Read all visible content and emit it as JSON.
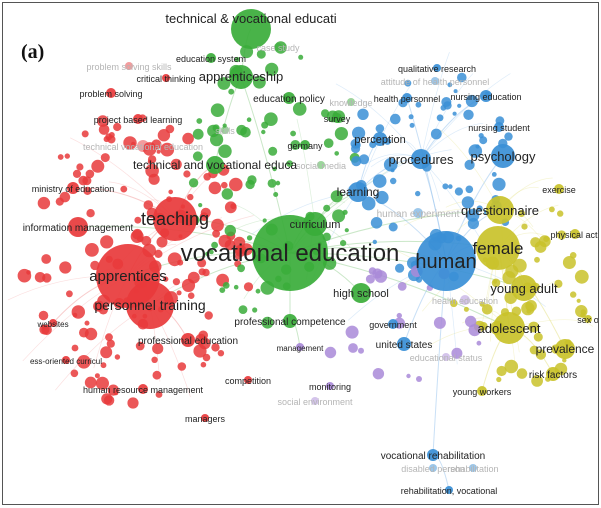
{
  "figure": {
    "panel_label": "(a)"
  },
  "colors": {
    "red": "#e8393b",
    "green": "#3aac3a",
    "blue": "#3a8fd6",
    "yellow": "#c9c22a",
    "purple": "#a98ad8",
    "edge_red": "#f3a3a3",
    "edge_green": "#9fd49a",
    "edge_blue": "#9cc7ee",
    "edge_yellow": "#e6e18a"
  },
  "network": {
    "edges": [
      [
        "vocational education",
        "apprentices"
      ],
      [
        "vocational education",
        "teaching"
      ],
      [
        "vocational education",
        "human"
      ],
      [
        "vocational education",
        "female"
      ],
      [
        "vocational education",
        "learning"
      ],
      [
        "vocational education",
        "curriculum"
      ],
      [
        "vocational education",
        "high school"
      ],
      [
        "vocational education",
        "personnel training"
      ],
      [
        "vocational education",
        "professional competence"
      ],
      [
        "vocational education",
        "apprenticeship"
      ],
      [
        "vocational education",
        "questionnaire"
      ],
      [
        "vocational education",
        "adolescent"
      ],
      [
        "vocational education",
        "young adult"
      ],
      [
        "vocational education",
        "information management"
      ],
      [
        "human",
        "procedures"
      ],
      [
        "human",
        "psychology"
      ],
      [
        "human",
        "female"
      ],
      [
        "human",
        "learning"
      ],
      [
        "human",
        "questionnaire"
      ],
      [
        "female",
        "adolescent"
      ],
      [
        "female",
        "young adult"
      ],
      [
        "female",
        "prevalence"
      ],
      [
        "apprentices",
        "teaching"
      ],
      [
        "apprentices",
        "personnel training"
      ],
      [
        "teaching",
        "technical and vocational educa"
      ],
      [
        "apprenticeship",
        "technical and vocational educa"
      ],
      [
        "technical & vocational educati",
        "apprenticeship"
      ],
      [
        "curriculum",
        "learning"
      ],
      [
        "learning",
        "procedures"
      ],
      [
        "procedures",
        "nursing education"
      ],
      [
        "human",
        "united states"
      ],
      [
        "adolescent",
        "risk factors"
      ],
      [
        "adolescent",
        "young workers"
      ],
      [
        "human",
        "vocational rehabilitation"
      ],
      [
        "vocational rehabilitation",
        "rehabilitation, vocational"
      ],
      [
        "personnel training",
        "professional education"
      ],
      [
        "teaching",
        "ministry of education"
      ],
      [
        "apprentices",
        "websites"
      ],
      [
        "professional competence",
        "management"
      ],
      [
        "learning",
        "perception"
      ],
      [
        "human",
        "health personnel"
      ]
    ],
    "nodes": [
      {
        "label": "technical & vocational educati",
        "cluster": "green",
        "size": 20,
        "text_size": 13,
        "faint": false
      },
      {
        "label": "case study",
        "cluster": "green",
        "size": 4,
        "text_size": 9,
        "faint": true
      },
      {
        "label": "education system",
        "cluster": "green",
        "size": 5,
        "text_size": 9,
        "faint": false
      },
      {
        "label": "apprenticeship",
        "cluster": "green",
        "size": 12,
        "text_size": 13,
        "faint": false
      },
      {
        "label": "education policy",
        "cluster": "green",
        "size": 6,
        "text_size": 10,
        "faint": false
      },
      {
        "label": "knowledge",
        "cluster": "green",
        "size": 4,
        "text_size": 9,
        "faint": true
      },
      {
        "label": "survey",
        "cluster": "green",
        "size": 5,
        "text_size": 9,
        "faint": false
      },
      {
        "label": "skills",
        "cluster": "green",
        "size": 4,
        "text_size": 9,
        "faint": true
      },
      {
        "label": "germany",
        "cluster": "green",
        "size": 5,
        "text_size": 9,
        "faint": false
      },
      {
        "label": "technical and vocational educa",
        "cluster": "green",
        "size": 9,
        "text_size": 12,
        "faint": false
      },
      {
        "label": "curriculum",
        "cluster": "green",
        "size": 12,
        "text_size": 11,
        "faint": false
      },
      {
        "label": "vocational education",
        "cluster": "green",
        "size": 38,
        "text_size": 24,
        "faint": false
      },
      {
        "label": "high school",
        "cluster": "green",
        "size": 10,
        "text_size": 11,
        "faint": false
      },
      {
        "label": "professional competence",
        "cluster": "green",
        "size": 7,
        "text_size": 10,
        "faint": false
      },
      {
        "label": "management",
        "cluster": "purple",
        "size": 4,
        "text_size": 8,
        "faint": false
      },
      {
        "label": "government",
        "cluster": "blue",
        "size": 5,
        "text_size": 9,
        "faint": false
      },
      {
        "label": "monitoring",
        "cluster": "purple",
        "size": 4,
        "text_size": 9,
        "faint": false
      },
      {
        "label": "social environment",
        "cluster": "purple",
        "size": 4,
        "text_size": 9,
        "faint": true
      },
      {
        "label": "competition",
        "cluster": "red",
        "size": 4,
        "text_size": 9,
        "faint": false
      },
      {
        "label": "managers",
        "cluster": "red",
        "size": 4,
        "text_size": 9,
        "faint": false
      },
      {
        "label": "human resource management",
        "cluster": "red",
        "size": 5,
        "text_size": 9,
        "faint": false
      },
      {
        "label": "professional education",
        "cluster": "red",
        "size": 7,
        "text_size": 10,
        "faint": false
      },
      {
        "label": "ess-oriented curricul",
        "cluster": "red",
        "size": 4,
        "text_size": 8,
        "faint": false
      },
      {
        "label": "websites",
        "cluster": "red",
        "size": 4,
        "text_size": 8,
        "faint": false
      },
      {
        "label": "personnel training",
        "cluster": "red",
        "size": 24,
        "text_size": 14,
        "faint": false
      },
      {
        "label": "apprentices",
        "cluster": "red",
        "size": 32,
        "text_size": 15,
        "faint": false
      },
      {
        "label": "information management",
        "cluster": "red",
        "size": 10,
        "text_size": 10,
        "faint": false
      },
      {
        "label": "teaching",
        "cluster": "red",
        "size": 22,
        "text_size": 18,
        "faint": false
      },
      {
        "label": "ministry of education",
        "cluster": "red",
        "size": 6,
        "text_size": 9,
        "faint": false
      },
      {
        "label": "technical vocational education",
        "cluster": "red",
        "size": 6,
        "text_size": 9,
        "faint": true
      },
      {
        "label": "project based learning",
        "cluster": "red",
        "size": 5,
        "text_size": 9,
        "faint": false
      },
      {
        "label": "problem solving",
        "cluster": "red",
        "size": 5,
        "text_size": 9,
        "faint": false
      },
      {
        "label": "critical thinking",
        "cluster": "red",
        "size": 4,
        "text_size": 9,
        "faint": false
      },
      {
        "label": "problem solving skills",
        "cluster": "red",
        "size": 4,
        "text_size": 9,
        "faint": true
      },
      {
        "label": "social media",
        "cluster": "green",
        "size": 4,
        "text_size": 9,
        "faint": true
      },
      {
        "label": "human",
        "cluster": "blue",
        "size": 30,
        "text_size": 20,
        "faint": false
      },
      {
        "label": "learning",
        "cluster": "blue",
        "size": 10,
        "text_size": 12,
        "faint": false
      },
      {
        "label": "perception",
        "cluster": "blue",
        "size": 7,
        "text_size": 11,
        "faint": false
      },
      {
        "label": "procedures",
        "cluster": "blue",
        "size": 10,
        "text_size": 13,
        "faint": false
      },
      {
        "label": "psychology",
        "cluster": "blue",
        "size": 12,
        "text_size": 13,
        "faint": false
      },
      {
        "label": "health personnel",
        "cluster": "blue",
        "size": 5,
        "text_size": 9,
        "faint": false
      },
      {
        "label": "qualitative research",
        "cluster": "blue",
        "size": 4,
        "text_size": 9,
        "faint": false
      },
      {
        "label": "attitude of health personnel",
        "cluster": "blue",
        "size": 4,
        "text_size": 9,
        "faint": true
      },
      {
        "label": "nursing education",
        "cluster": "blue",
        "size": 6,
        "text_size": 9,
        "faint": false
      },
      {
        "label": "nursing student",
        "cluster": "blue",
        "size": 5,
        "text_size": 9,
        "faint": false
      },
      {
        "label": "united states",
        "cluster": "blue",
        "size": 7,
        "text_size": 10,
        "faint": false
      },
      {
        "label": "vocational rehabilitation",
        "cluster": "blue",
        "size": 6,
        "text_size": 10,
        "faint": false
      },
      {
        "label": "disabled person",
        "cluster": "blue",
        "size": 4,
        "text_size": 9,
        "faint": true
      },
      {
        "label": "rehabilitation",
        "cluster": "blue",
        "size": 4,
        "text_size": 9,
        "faint": true
      },
      {
        "label": "rehabilitation, vocational",
        "cluster": "blue",
        "size": 4,
        "text_size": 9,
        "faint": false
      },
      {
        "label": "questionnaire",
        "cluster": "yellow",
        "size": 14,
        "text_size": 13,
        "faint": false
      },
      {
        "label": "exercise",
        "cluster": "yellow",
        "size": 5,
        "text_size": 9,
        "faint": false
      },
      {
        "label": "female",
        "cluster": "yellow",
        "size": 22,
        "text_size": 17,
        "faint": false
      },
      {
        "label": "physical acti",
        "cluster": "yellow",
        "size": 5,
        "text_size": 9,
        "faint": false
      },
      {
        "label": "young adult",
        "cluster": "yellow",
        "size": 13,
        "text_size": 13,
        "faint": false
      },
      {
        "label": "adolescent",
        "cluster": "yellow",
        "size": 16,
        "text_size": 13,
        "faint": false
      },
      {
        "label": "sex o",
        "cluster": "yellow",
        "size": 4,
        "text_size": 9,
        "faint": false
      },
      {
        "label": "prevalence",
        "cluster": "yellow",
        "size": 10,
        "text_size": 12,
        "faint": false
      },
      {
        "label": "risk factors",
        "cluster": "yellow",
        "size": 7,
        "text_size": 10,
        "faint": false
      },
      {
        "label": "young workers",
        "cluster": "yellow",
        "size": 5,
        "text_size": 9,
        "faint": false
      },
      {
        "label": "health education",
        "cluster": "purple",
        "size": 5,
        "text_size": 9,
        "faint": true
      },
      {
        "label": "educational status",
        "cluster": "purple",
        "size": 4,
        "text_size": 9,
        "faint": true
      },
      {
        "label": "human experiment",
        "cluster": "blue",
        "size": 5,
        "text_size": 10,
        "faint": true
      }
    ]
  }
}
